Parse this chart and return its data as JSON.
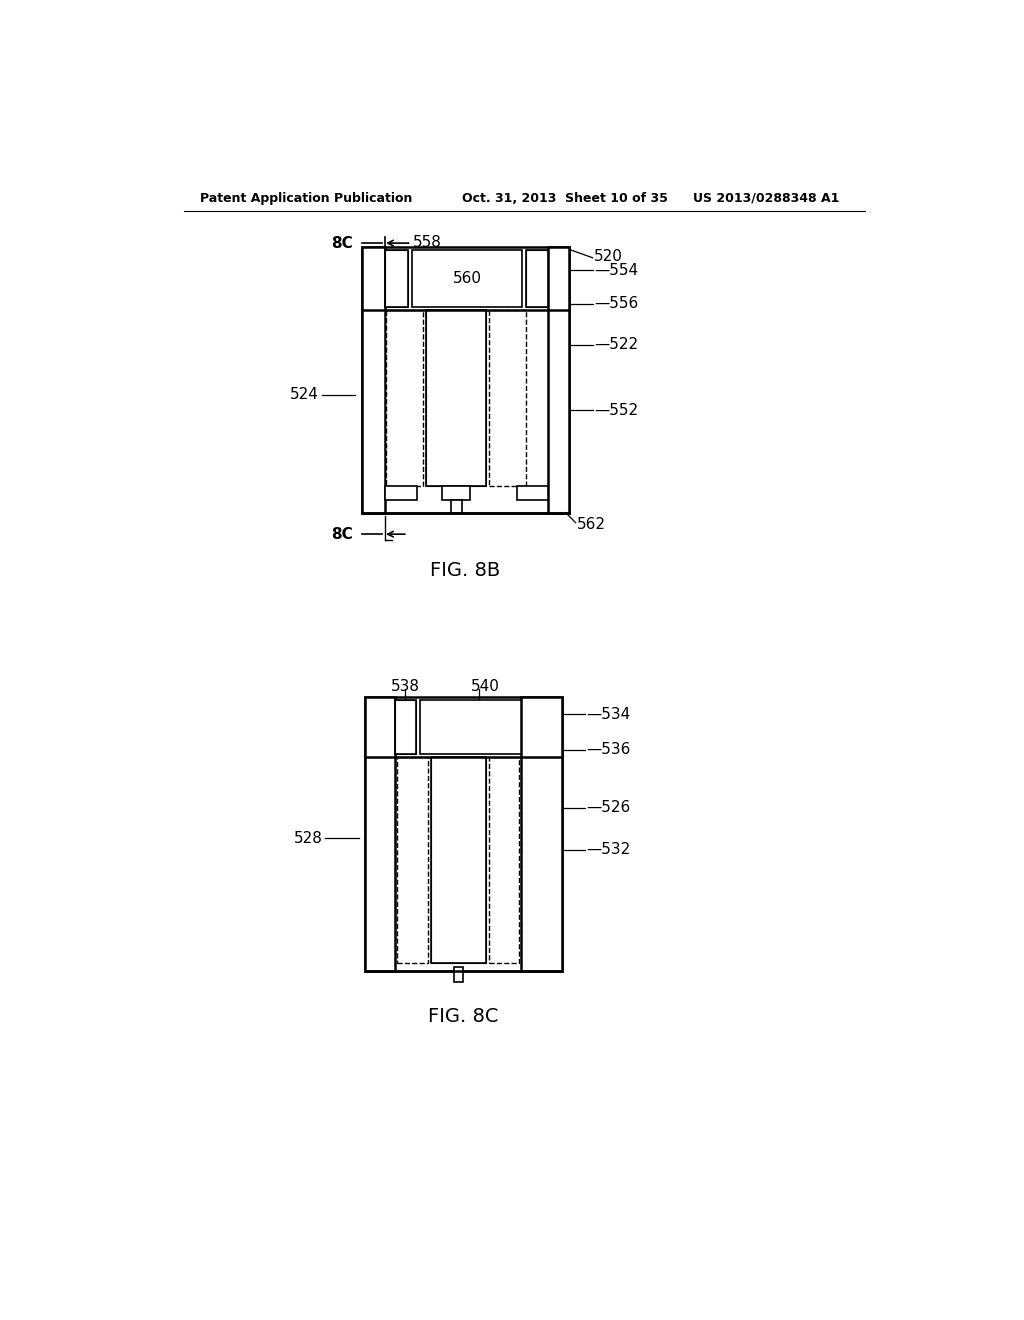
{
  "bg_color": "#ffffff",
  "header_text_left": "Patent Application Publication",
  "header_text_mid": "Oct. 31, 2013  Sheet 10 of 35",
  "header_text_right": "US 2013/0288348 A1",
  "fig8b_label": "FIG. 8B",
  "fig8c_label": "FIG. 8C"
}
